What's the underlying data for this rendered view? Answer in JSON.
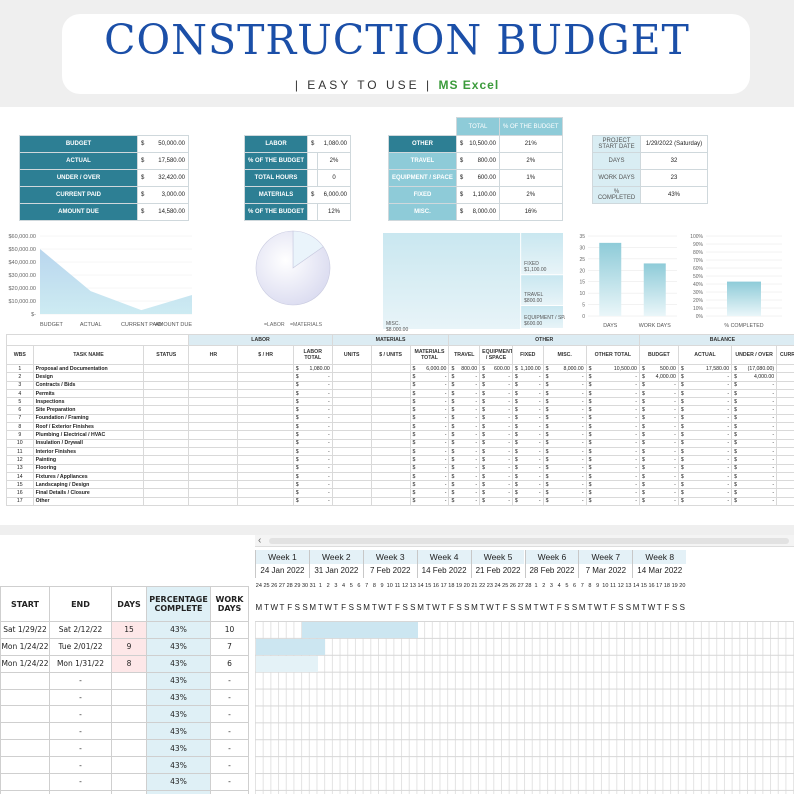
{
  "banner": {
    "title": "CONSTRUCTION BUDGET",
    "subtitle_left": "| EASY TO USE |",
    "subtitle_right": "MS Excel"
  },
  "summary": {
    "rows": [
      {
        "label": "BUDGET",
        "cur": "$",
        "value": "50,000.00"
      },
      {
        "label": "ACTUAL",
        "cur": "$",
        "value": "17,580.00"
      },
      {
        "label": "UNDER / OVER",
        "cur": "$",
        "value": "32,420.00"
      },
      {
        "label": "CURRENT PAID",
        "cur": "$",
        "value": "3,000.00"
      },
      {
        "label": "AMOUNT DUE",
        "cur": "$",
        "value": "14,580.00"
      }
    ]
  },
  "labor_box": {
    "rows": [
      {
        "label": "LABOR",
        "cur": "$",
        "value": "1,080.00"
      },
      {
        "label": "% OF THE BUDGET",
        "cur": "",
        "value": "2%"
      },
      {
        "label": "TOTAL HOURS",
        "cur": "",
        "value": "0"
      },
      {
        "label": "MATERIALS",
        "cur": "$",
        "value": "6,000.00"
      },
      {
        "label": "% OF THE BUDGET",
        "cur": "",
        "value": "12%"
      }
    ]
  },
  "other_box": {
    "col_total": "TOTAL",
    "col_pct": "% OF THE BUDGET",
    "rows": [
      {
        "label": "OTHER",
        "cur": "$",
        "value": "10,500.00",
        "pct": "21%"
      },
      {
        "label": "TRAVEL",
        "cur": "$",
        "value": "800.00",
        "pct": "2%"
      },
      {
        "label": "EQUIPMENT / SPACE",
        "cur": "$",
        "value": "600.00",
        "pct": "1%"
      },
      {
        "label": "FIXED",
        "cur": "$",
        "value": "1,100.00",
        "pct": "2%"
      },
      {
        "label": "MISC.",
        "cur": "$",
        "value": "8,000.00",
        "pct": "16%"
      }
    ]
  },
  "project_box": {
    "rows": [
      {
        "label": "PROJECT START DATE",
        "value": "1/29/2022 (Saturday)"
      },
      {
        "label": "DAYS",
        "value": "32"
      },
      {
        "label": "WORK DAYS",
        "value": "23"
      },
      {
        "label": "% COMPLETED",
        "value": "43%"
      }
    ]
  },
  "chart_data": [
    {
      "type": "area",
      "categories": [
        "BUDGET",
        "ACTUAL",
        "CURRENT PAID",
        "AMOUNT DUE"
      ],
      "values": [
        50000,
        17580,
        3000,
        14580
      ],
      "yticks": [
        "$60,000.00",
        "$50,000.00",
        "$40,000.00",
        "$30,000.00",
        "$20,000.00",
        "$10,000.00",
        "$-"
      ],
      "ylim": [
        0,
        60000
      ]
    },
    {
      "type": "pie",
      "categories": [
        "LABOR",
        "MATERIALS"
      ],
      "values": [
        1080,
        6000
      ],
      "legend": [
        "=LABOR",
        "=MATERIALS"
      ]
    },
    {
      "type": "heatmap",
      "categories": [
        "MISC.",
        "FIXED",
        "TRAVEL",
        "EQUIPMENT / SPACE"
      ],
      "values": [
        8000,
        1100,
        800,
        600
      ],
      "labels": [
        "MISC., $8,000.00",
        "FIXED, $1,100.00",
        "TRAVEL, $800.00",
        "EQUIPMENT / SPACE, $600.00"
      ]
    },
    {
      "type": "bar",
      "categories": [
        "DAYS",
        "WORK DAYS"
      ],
      "values": [
        32,
        23
      ],
      "ylim": [
        0,
        35
      ],
      "yticks": [
        "35",
        "30",
        "25",
        "20",
        "15",
        "10",
        "5",
        "0"
      ]
    },
    {
      "type": "bar",
      "categories": [
        "% COMPLETED"
      ],
      "values": [
        43
      ],
      "ylim": [
        0,
        100
      ],
      "yticks": [
        "100%",
        "90%",
        "80%",
        "70%",
        "60%",
        "50%",
        "40%",
        "30%",
        "20%",
        "10%",
        "0%"
      ]
    }
  ],
  "main_table": {
    "groups": {
      "labor": "LABOR",
      "materials": "MATERIALS",
      "other": "OTHER",
      "balance": "BALANCE"
    },
    "headers": [
      "WBS",
      "TASK NAME",
      "STATUS",
      "HR",
      "$ / HR",
      "LABOR TOTAL",
      "UNITS",
      "$ / UNITS",
      "MATERIALS TOTAL",
      "TRAVEL",
      "EQUIPMENT / SPACE",
      "FIXED",
      "MISC.",
      "OTHER TOTAL",
      "BUDGET",
      "ACTUAL",
      "UNDER / OVER",
      "CURREN"
    ],
    "rows": [
      {
        "wbs": "1",
        "task": "Proposal and Documentation",
        "labor": "1,080.00",
        "materials": "6,000.00",
        "travel": "800.00",
        "equip": "600.00",
        "fixed": "1,100.00",
        "misc": "8,000.00",
        "other": "10,500.00",
        "budget": "500.00",
        "actual": "17,580.00",
        "under": "(17,080.00)",
        "cur": ""
      },
      {
        "wbs": "2",
        "task": "Design",
        "labor": "-",
        "materials": "-",
        "travel": "-",
        "equip": "-",
        "fixed": "-",
        "misc": "-",
        "other": "-",
        "budget": "4,000.00",
        "actual": "-",
        "under": "4,000.00",
        "cur": "3,"
      },
      {
        "wbs": "3",
        "task": "Contracts / Bids",
        "labor": "-",
        "materials": "-",
        "travel": "-",
        "equip": "-",
        "fixed": "-",
        "misc": "-",
        "other": "-",
        "budget": "-",
        "actual": "-",
        "under": "-",
        "cur": ""
      },
      {
        "wbs": "4",
        "task": "Permits",
        "labor": "-",
        "materials": "-",
        "travel": "-",
        "equip": "-",
        "fixed": "-",
        "misc": "-",
        "other": "-",
        "budget": "-",
        "actual": "-",
        "under": "-",
        "cur": ""
      },
      {
        "wbs": "5",
        "task": "Inspections",
        "labor": "-",
        "materials": "-",
        "travel": "-",
        "equip": "-",
        "fixed": "-",
        "misc": "-",
        "other": "-",
        "budget": "-",
        "actual": "-",
        "under": "-",
        "cur": ""
      },
      {
        "wbs": "6",
        "task": "Site Preparation",
        "labor": "-",
        "materials": "-",
        "travel": "-",
        "equip": "-",
        "fixed": "-",
        "misc": "-",
        "other": "-",
        "budget": "-",
        "actual": "-",
        "under": "-",
        "cur": ""
      },
      {
        "wbs": "7",
        "task": "Foundation / Framing",
        "labor": "-",
        "materials": "-",
        "travel": "-",
        "equip": "-",
        "fixed": "-",
        "misc": "-",
        "other": "-",
        "budget": "-",
        "actual": "-",
        "under": "-",
        "cur": ""
      },
      {
        "wbs": "8",
        "task": "Roof / Exterior Finishes",
        "labor": "-",
        "materials": "-",
        "travel": "-",
        "equip": "-",
        "fixed": "-",
        "misc": "-",
        "other": "-",
        "budget": "-",
        "actual": "-",
        "under": "-",
        "cur": ""
      },
      {
        "wbs": "9",
        "task": "Plumbing / Electrical / HVAC",
        "labor": "-",
        "materials": "-",
        "travel": "-",
        "equip": "-",
        "fixed": "-",
        "misc": "-",
        "other": "-",
        "budget": "-",
        "actual": "-",
        "under": "-",
        "cur": ""
      },
      {
        "wbs": "10",
        "task": "Insulation / Drywall",
        "labor": "-",
        "materials": "-",
        "travel": "-",
        "equip": "-",
        "fixed": "-",
        "misc": "-",
        "other": "-",
        "budget": "-",
        "actual": "-",
        "under": "-",
        "cur": ""
      },
      {
        "wbs": "11",
        "task": "Interior Finishes",
        "labor": "-",
        "materials": "-",
        "travel": "-",
        "equip": "-",
        "fixed": "-",
        "misc": "-",
        "other": "-",
        "budget": "-",
        "actual": "-",
        "under": "-",
        "cur": ""
      },
      {
        "wbs": "12",
        "task": "Painting",
        "labor": "-",
        "materials": "-",
        "travel": "-",
        "equip": "-",
        "fixed": "-",
        "misc": "-",
        "other": "-",
        "budget": "-",
        "actual": "-",
        "under": "-",
        "cur": ""
      },
      {
        "wbs": "13",
        "task": "Flooring",
        "labor": "-",
        "materials": "-",
        "travel": "-",
        "equip": "-",
        "fixed": "-",
        "misc": "-",
        "other": "-",
        "budget": "-",
        "actual": "-",
        "under": "-",
        "cur": ""
      },
      {
        "wbs": "14",
        "task": "Fixtures / Appliances",
        "labor": "-",
        "materials": "-",
        "travel": "-",
        "equip": "-",
        "fixed": "-",
        "misc": "-",
        "other": "-",
        "budget": "-",
        "actual": "-",
        "under": "-",
        "cur": ""
      },
      {
        "wbs": "15",
        "task": "Landscaping / Design",
        "labor": "-",
        "materials": "-",
        "travel": "-",
        "equip": "-",
        "fixed": "-",
        "misc": "-",
        "other": "-",
        "budget": "-",
        "actual": "-",
        "under": "-",
        "cur": ""
      },
      {
        "wbs": "16",
        "task": "Final Details / Closure",
        "labor": "-",
        "materials": "-",
        "travel": "-",
        "equip": "-",
        "fixed": "-",
        "misc": "-",
        "other": "-",
        "budget": "-",
        "actual": "-",
        "under": "-",
        "cur": ""
      },
      {
        "wbs": "17",
        "task": "Other",
        "labor": "-",
        "materials": "-",
        "travel": "-",
        "equip": "-",
        "fixed": "-",
        "misc": "-",
        "other": "-",
        "budget": "-",
        "actual": "-",
        "under": "-",
        "cur": ""
      }
    ]
  },
  "gantt": {
    "left_headers": [
      "START",
      "END",
      "DAYS",
      "PERCENTAGE COMPLETE",
      "WORK DAYS"
    ],
    "rows": [
      {
        "start": "Sat 1/29/22",
        "end": "Sat 2/12/22",
        "days": "15",
        "pct": "43%",
        "work": "10"
      },
      {
        "start": "Mon 1/24/22",
        "end": "Tue 2/01/22",
        "days": "9",
        "pct": "43%",
        "work": "7"
      },
      {
        "start": "Mon 1/24/22",
        "end": "Mon 1/31/22",
        "days": "8",
        "pct": "43%",
        "work": "6"
      },
      {
        "start": "",
        "end": "-",
        "days": "",
        "pct": "43%",
        "work": "-"
      },
      {
        "start": "",
        "end": "-",
        "days": "",
        "pct": "43%",
        "work": "-"
      },
      {
        "start": "",
        "end": "-",
        "days": "",
        "pct": "43%",
        "work": "-"
      },
      {
        "start": "",
        "end": "-",
        "days": "",
        "pct": "43%",
        "work": "-"
      },
      {
        "start": "",
        "end": "-",
        "days": "",
        "pct": "43%",
        "work": "-"
      },
      {
        "start": "",
        "end": "-",
        "days": "",
        "pct": "43%",
        "work": "-"
      },
      {
        "start": "",
        "end": "-",
        "days": "",
        "pct": "43%",
        "work": "-"
      },
      {
        "start": "",
        "end": "-",
        "days": "",
        "pct": "43%",
        "work": "-"
      }
    ],
    "weeks": [
      {
        "label": "Week 1",
        "date": "24 Jan 2022"
      },
      {
        "label": "Week 2",
        "date": "31 Jan 2022"
      },
      {
        "label": "Week 3",
        "date": "7 Feb 2022"
      },
      {
        "label": "Week 4",
        "date": "14 Feb 2022"
      },
      {
        "label": "Week 5",
        "date": "21 Feb 2022"
      },
      {
        "label": "Week 6",
        "date": "28 Feb 2022"
      },
      {
        "label": "Week 7",
        "date": "7 Mar 2022"
      },
      {
        "label": "Week 8",
        "date": "14 Mar 2022"
      }
    ],
    "day_numbers": [
      "24",
      "25",
      "26",
      "27",
      "28",
      "29",
      "30",
      "31",
      "1",
      "2",
      "3",
      "4",
      "5",
      "6",
      "7",
      "8",
      "9",
      "10",
      "11",
      "12",
      "13",
      "14",
      "15",
      "16",
      "17",
      "18",
      "19",
      "20",
      "21",
      "22",
      "23",
      "24",
      "25",
      "26",
      "27",
      "28",
      "1",
      "2",
      "3",
      "4",
      "5",
      "6",
      "7",
      "8",
      "9",
      "10",
      "11",
      "12",
      "13",
      "14",
      "15",
      "16",
      "17",
      "18",
      "19",
      "20"
    ],
    "day_letters": [
      "M",
      "T",
      "W",
      "T",
      "F",
      "S",
      "S"
    ]
  },
  "colors": {
    "teal": "#2d7f94",
    "light_teal": "#8ecbd8",
    "pale": "#dcecf3",
    "title_blue": "#1b4fa8",
    "green": "#3b9b3b",
    "bar": "#cce6f1"
  }
}
